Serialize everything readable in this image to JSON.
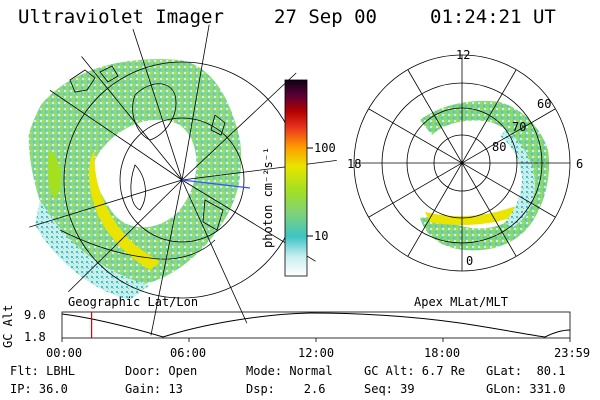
{
  "header": {
    "instrument": "Ultraviolet Imager",
    "date": "27 Sep 00",
    "time": "01:24:21 UT"
  },
  "colorbar": {
    "unit_label": "photon cm⁻²s⁻¹",
    "tick_100": "100",
    "tick_10": "10",
    "colors": [
      "#ffffff",
      "#c8eef0",
      "#3dc4c4",
      "#7ed27a",
      "#a5e020",
      "#e9e400",
      "#ff9900",
      "#e8321e",
      "#b30000",
      "#5a0036",
      "#0f0015"
    ]
  },
  "left_panel": {
    "caption": "Geographic Lat/Lon"
  },
  "right_panel": {
    "caption": "Apex MLat/MLT",
    "mlt_12": "12",
    "mlt_18": "18",
    "mlt_6": "6",
    "mlt_0": "0",
    "lat_60": "60",
    "lat_70": "70",
    "lat_80": "80"
  },
  "altitude_strip": {
    "ylabel": "GC Alt",
    "y_max": "9.0",
    "y_min": "1.8",
    "x_ticks": [
      "00:00",
      "06:00",
      "12:00",
      "18:00",
      "23:59"
    ],
    "marker_time": "01:24"
  },
  "footer": {
    "flt": "Flt: LBHL",
    "ip": "IP: 36.0",
    "door": "Door: Open",
    "gain": "Gain: 13",
    "mode": "Mode: Normal",
    "dsp": "Dsp:    2.6",
    "gc_alt": "GC Alt: 6.7 Re",
    "seq": "Seq: 39",
    "glat": "GLat:  80.1",
    "glon": "GLon: 331.0"
  }
}
